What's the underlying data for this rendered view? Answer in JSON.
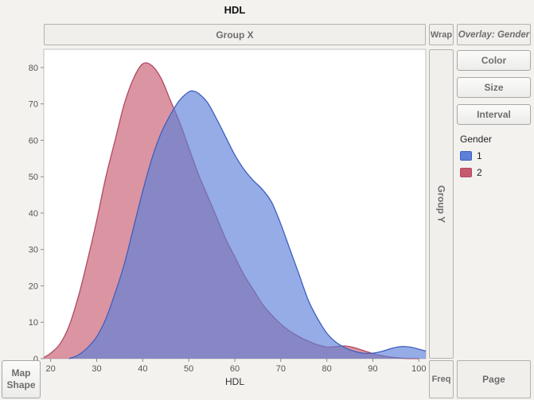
{
  "title": "HDL",
  "zones": {
    "group_x": "Group X",
    "wrap": "Wrap",
    "overlay": "Overlay: Gender",
    "group_y": "Group Y",
    "freq": "Freq",
    "page": "Page",
    "map_shape": "Map Shape"
  },
  "side_buttons": [
    "Color",
    "Size",
    "Interval"
  ],
  "legend": {
    "title": "Gender",
    "items": [
      {
        "label": "1"
      },
      {
        "label": "2"
      }
    ]
  },
  "chart_data": {
    "type": "area",
    "title": "HDL",
    "xlabel": "HDL",
    "ylabel": "",
    "xlim": [
      18.5,
      101.5
    ],
    "ylim": [
      0,
      85
    ],
    "x_ticks": [
      20,
      30,
      40,
      50,
      60,
      70,
      80,
      90,
      100
    ],
    "y_ticks": [
      0,
      10,
      20,
      30,
      40,
      50,
      60,
      70,
      80
    ],
    "grid": false,
    "legend_position": "right",
    "series": [
      {
        "name": "1",
        "fill": "#5C7FD9",
        "stroke": "#3E5FBF",
        "opacity": 0.65,
        "points": [
          [
            24,
            0
          ],
          [
            26,
            1
          ],
          [
            28,
            3
          ],
          [
            30,
            6
          ],
          [
            32,
            11
          ],
          [
            34,
            18
          ],
          [
            36,
            26
          ],
          [
            38,
            36
          ],
          [
            40,
            46
          ],
          [
            42,
            55
          ],
          [
            44,
            62
          ],
          [
            46,
            67
          ],
          [
            48,
            71
          ],
          [
            50,
            73.3
          ],
          [
            51,
            73.5
          ],
          [
            52,
            73
          ],
          [
            54,
            70.5
          ],
          [
            56,
            66
          ],
          [
            58,
            61
          ],
          [
            60,
            56
          ],
          [
            62,
            52
          ],
          [
            64,
            49
          ],
          [
            66,
            46.5
          ],
          [
            68,
            43
          ],
          [
            70,
            37
          ],
          [
            72,
            30
          ],
          [
            74,
            23
          ],
          [
            76,
            16
          ],
          [
            78,
            11
          ],
          [
            80,
            7
          ],
          [
            82,
            4.5
          ],
          [
            84,
            3
          ],
          [
            86,
            2
          ],
          [
            88,
            1.5
          ],
          [
            90,
            1.5
          ],
          [
            92,
            2
          ],
          [
            94,
            2.8
          ],
          [
            96,
            3.3
          ],
          [
            98,
            3.2
          ],
          [
            100,
            2.6
          ],
          [
            101.5,
            2.1
          ]
        ]
      },
      {
        "name": "2",
        "fill": "#C85A70",
        "stroke": "#B04A60",
        "opacity": 0.65,
        "points": [
          [
            18.5,
            0.3
          ],
          [
            20,
            1.5
          ],
          [
            22,
            4
          ],
          [
            24,
            9
          ],
          [
            26,
            17
          ],
          [
            28,
            27
          ],
          [
            30,
            38
          ],
          [
            32,
            50
          ],
          [
            34,
            60
          ],
          [
            36,
            70
          ],
          [
            38,
            77
          ],
          [
            40,
            81
          ],
          [
            42,
            80.5
          ],
          [
            44,
            77
          ],
          [
            46,
            71
          ],
          [
            48,
            65
          ],
          [
            50,
            58
          ],
          [
            52,
            51
          ],
          [
            54,
            45
          ],
          [
            56,
            39
          ],
          [
            58,
            33
          ],
          [
            60,
            28
          ],
          [
            62,
            23
          ],
          [
            64,
            19
          ],
          [
            66,
            15
          ],
          [
            68,
            12
          ],
          [
            70,
            9.5
          ],
          [
            72,
            7.5
          ],
          [
            74,
            6
          ],
          [
            76,
            4.8
          ],
          [
            78,
            3.8
          ],
          [
            80,
            3.2
          ],
          [
            82,
            3.3
          ],
          [
            84,
            3.5
          ],
          [
            86,
            3
          ],
          [
            88,
            2.2
          ],
          [
            90,
            1.4
          ],
          [
            92,
            0.8
          ],
          [
            94,
            0.4
          ],
          [
            96,
            0.15
          ],
          [
            98,
            0.05
          ],
          [
            100,
            0
          ]
        ]
      }
    ]
  }
}
